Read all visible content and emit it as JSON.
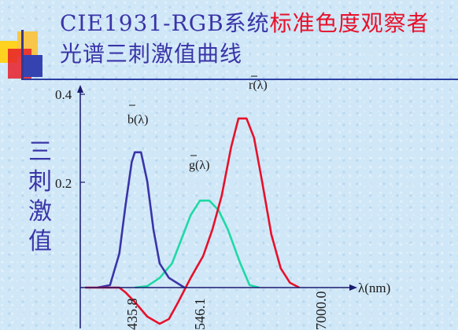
{
  "slide": {
    "title_part1": "CIE1931-RGB系统",
    "title_part2": "标准色度观察者",
    "title_line2": "光谱三刺激值曲线",
    "side_label": [
      "三",
      "刺",
      "激",
      "值"
    ]
  },
  "colors": {
    "title_blue": "#3a34a8",
    "title_red": "#e8102a",
    "r_curve": "#e8102a",
    "g_curve": "#1fd9a6",
    "b_curve": "#3a34a8",
    "axis": "#1a1a6e"
  },
  "chart_data": {
    "type": "line",
    "xlabel": "λ(nm)",
    "ylabel": "三刺激值",
    "y_ticks": [
      "0.4",
      "0.2"
    ],
    "x_ticks": [
      "435.8",
      "546.1",
      "7000.0"
    ],
    "ylim": [
      -0.09,
      0.4
    ],
    "series": [
      {
        "name": "b(λ)",
        "color": "#3a34a8",
        "points": [
          [
            380,
            0.0
          ],
          [
            400,
            0.005
          ],
          [
            415,
            0.07
          ],
          [
            425,
            0.17
          ],
          [
            435,
            0.26
          ],
          [
            440,
            0.28
          ],
          [
            450,
            0.28
          ],
          [
            460,
            0.22
          ],
          [
            470,
            0.12
          ],
          [
            480,
            0.05
          ],
          [
            495,
            0.02
          ],
          [
            520,
            0.0
          ]
        ]
      },
      {
        "name": "g(λ)",
        "color": "#1fd9a6",
        "points": [
          [
            440,
            0.0
          ],
          [
            460,
            0.003
          ],
          [
            480,
            0.02
          ],
          [
            500,
            0.05
          ],
          [
            515,
            0.1
          ],
          [
            530,
            0.15
          ],
          [
            545,
            0.18
          ],
          [
            560,
            0.18
          ],
          [
            575,
            0.16
          ],
          [
            590,
            0.12
          ],
          [
            610,
            0.05
          ],
          [
            625,
            0.005
          ],
          [
            640,
            0.0
          ]
        ]
      },
      {
        "name": "r(λ)",
        "color": "#e8102a",
        "points": [
          [
            360,
            0.0
          ],
          [
            415,
            0.0
          ],
          [
            425,
            -0.01
          ],
          [
            440,
            -0.03
          ],
          [
            460,
            -0.06
          ],
          [
            480,
            -0.075
          ],
          [
            495,
            -0.065
          ],
          [
            510,
            -0.03
          ],
          [
            530,
            0.02
          ],
          [
            550,
            0.065
          ],
          [
            565,
            0.12
          ],
          [
            580,
            0.19
          ],
          [
            595,
            0.29
          ],
          [
            607,
            0.35
          ],
          [
            620,
            0.35
          ],
          [
            632,
            0.31
          ],
          [
            645,
            0.22
          ],
          [
            660,
            0.11
          ],
          [
            675,
            0.04
          ],
          [
            690,
            0.01
          ],
          [
            705,
            0.0
          ]
        ]
      }
    ]
  }
}
